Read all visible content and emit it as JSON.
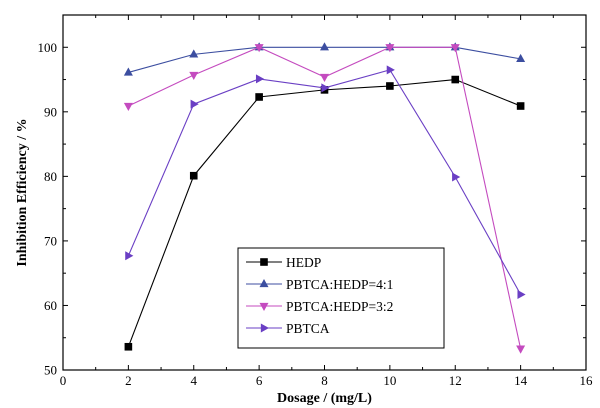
{
  "chart_data": {
    "type": "line",
    "title": "",
    "xlabel": "Dosage / (mg/L)",
    "ylabel": "Inhibition Efficiency / %",
    "xlim": [
      0,
      16
    ],
    "ylim": [
      50,
      105
    ],
    "xticks": [
      0,
      2,
      4,
      6,
      8,
      10,
      12,
      14,
      16
    ],
    "yticks": [
      50,
      60,
      70,
      80,
      90,
      100
    ],
    "grid": false,
    "legend_position": "bottom-center",
    "series": [
      {
        "name": "HEDP",
        "color": "#000000",
        "marker": "square",
        "x": [
          2,
          4,
          6,
          8,
          10,
          12,
          14
        ],
        "y": [
          53.6,
          80.1,
          92.3,
          93.4,
          94.0,
          95.0,
          90.9
        ]
      },
      {
        "name": "PBTCA:HEDP=4:1",
        "color": "#3c4ea0",
        "marker": "triangle-up",
        "x": [
          2,
          4,
          6,
          8,
          10,
          12,
          14
        ],
        "y": [
          96.1,
          98.9,
          100.0,
          100.0,
          100.0,
          100.0,
          98.2
        ]
      },
      {
        "name": "PBTCA:HEDP=3:2",
        "color": "#c44bbf",
        "marker": "triangle-down",
        "x": [
          2,
          4,
          6,
          8,
          10,
          12,
          14
        ],
        "y": [
          90.9,
          95.7,
          100.0,
          95.4,
          100.0,
          100.0,
          53.3
        ]
      },
      {
        "name": "PBTCA",
        "color": "#6a3fc4",
        "marker": "triangle-right",
        "x": [
          2,
          4,
          6,
          8,
          10,
          12,
          14
        ],
        "y": [
          67.7,
          91.2,
          95.1,
          93.7,
          96.5,
          79.9,
          61.7
        ]
      }
    ]
  }
}
